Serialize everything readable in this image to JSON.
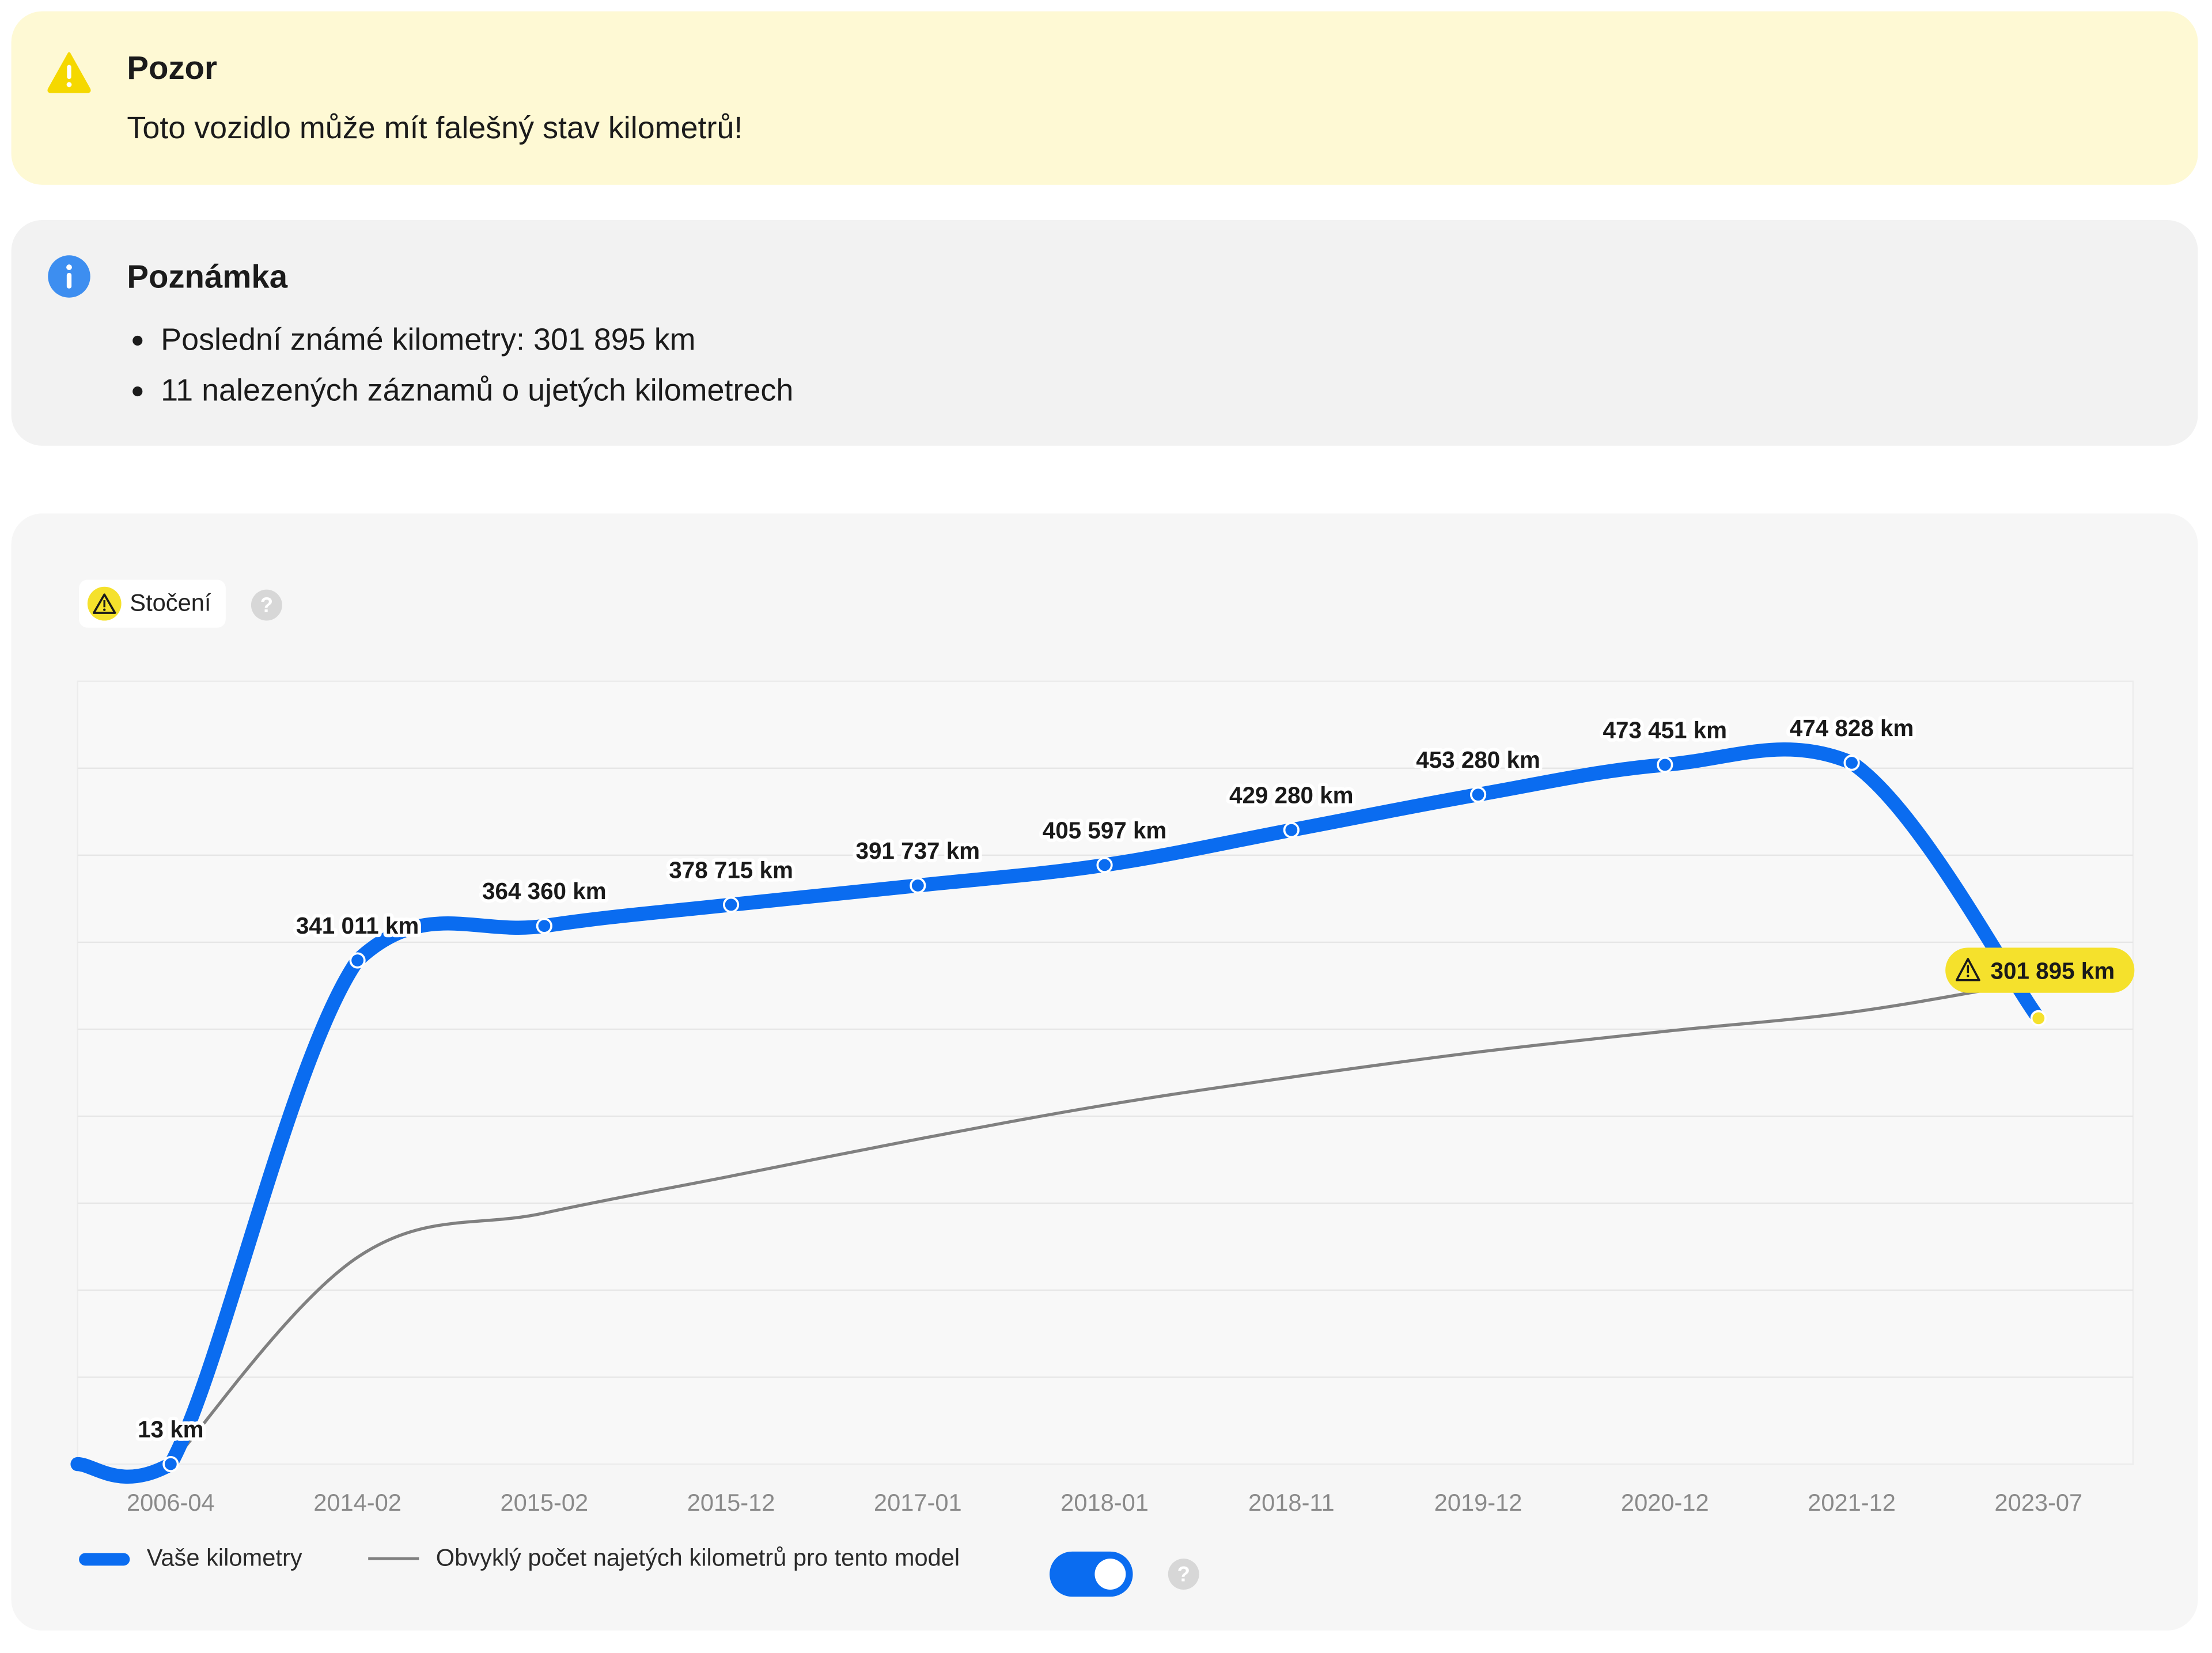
{
  "warning": {
    "title": "Pozor",
    "text": "Toto vozidlo může mít falešný stav kilometrů!",
    "icon": "warning-triangle-icon",
    "background": "#fef9d4"
  },
  "note": {
    "title": "Poznámka",
    "icon": "info-icon",
    "items": [
      "Poslední známé kilometry: 301 895 km",
      "11 nalezených záznamů o ujetých kilometrech"
    ]
  },
  "chart_header": {
    "tag_label": "Stočení",
    "tag_icon": "warning-triangle-icon",
    "help_icon": "question-icon",
    "help_text": "?"
  },
  "legend": {
    "mine_label": "Vaše kilometry",
    "typical_label": "Obvyklý počet najetých kilometrů pro tento model",
    "toggle_on": true,
    "help_text": "?"
  },
  "colors": {
    "accent": "#0a6cf0",
    "typical_line": "#808080",
    "warning": "#f5e12c"
  },
  "chart_data": {
    "type": "line",
    "categories": [
      "2006-04",
      "2014-02",
      "2015-02",
      "2015-12",
      "2017-01",
      "2018-01",
      "2018-11",
      "2019-12",
      "2020-12",
      "2021-12",
      "2023-07"
    ],
    "series": [
      {
        "name": "Vaše kilometry",
        "values": [
          13,
          341011,
          364360,
          378715,
          391737,
          405597,
          429280,
          453280,
          473451,
          474828,
          301895
        ],
        "labels": [
          "13 km",
          "341 011 km",
          "364 360 km",
          "378 715 km",
          "391 737 km",
          "405 597 km",
          "429 280 km",
          "453 280 km",
          "473 451 km",
          "474 828 km",
          "301 895 km"
        ]
      },
      {
        "name": "Obvyklý počet najetých kilometrů pro tento model",
        "values": [
          13,
          140000,
          170000,
          195000,
          220000,
          243000,
          262000,
          279000,
          293000,
          306000,
          327000
        ]
      }
    ],
    "flagged_index": 10,
    "ylim": [
      0,
      530000
    ],
    "grid": true,
    "legend_position": "bottom-left"
  }
}
